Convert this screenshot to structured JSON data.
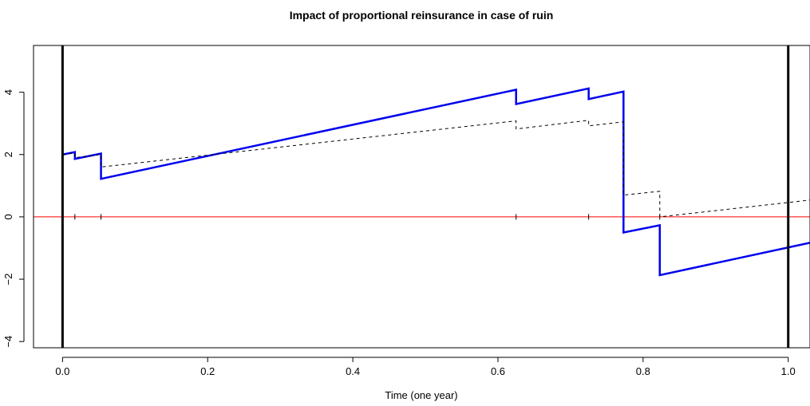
{
  "chart_data": {
    "type": "line",
    "title": "Impact of proportional reinsurance in case of ruin",
    "xlabel": "Time (one year)",
    "ylabel": "",
    "xlim": [
      -0.04,
      1.03
    ],
    "ylim": [
      -4.2,
      5.5
    ],
    "x_ticks": [
      {
        "value": 0.0,
        "label": "0.0"
      },
      {
        "value": 0.2,
        "label": "0.2"
      },
      {
        "value": 0.4,
        "label": "0.4"
      },
      {
        "value": 0.6,
        "label": "0.6"
      },
      {
        "value": 0.8,
        "label": "0.8"
      },
      {
        "value": 1.0,
        "label": "1.0"
      }
    ],
    "y_ticks": [
      {
        "value": -4,
        "label": "−4"
      },
      {
        "value": -2,
        "label": "−2"
      },
      {
        "value": 0,
        "label": "0"
      },
      {
        "value": 2,
        "label": "2"
      },
      {
        "value": 4,
        "label": "4"
      }
    ],
    "vertical_lines": [
      0.0,
      1.0
    ],
    "zero_line_color": "#ff0000",
    "claim_times": [
      0.017,
      0.053,
      0.625,
      0.725,
      0.773,
      0.823
    ],
    "grid": false,
    "series": [
      {
        "style": "solid",
        "color": "#0000ee",
        "x": [
          0.0,
          0.017,
          0.017,
          0.053,
          0.053,
          0.625,
          0.625,
          0.725,
          0.725,
          0.773,
          0.773,
          0.823,
          0.823,
          1.03
        ],
        "y": [
          2.0,
          2.08,
          1.86,
          2.03,
          1.22,
          4.08,
          3.62,
          4.12,
          3.78,
          4.02,
          -0.5,
          -0.27,
          -1.87,
          -0.83
        ]
      },
      {
        "style": "dashed",
        "color": "#000000",
        "x": [
          0.0,
          0.017,
          0.017,
          0.053,
          0.053,
          0.625,
          0.625,
          0.725,
          0.725,
          0.773,
          0.773,
          0.823,
          0.823,
          1.03
        ],
        "y": [
          2.0,
          2.05,
          1.9,
          2.0,
          1.6,
          3.08,
          2.82,
          3.1,
          2.92,
          3.05,
          0.7,
          0.82,
          0.0,
          0.54
        ]
      }
    ]
  }
}
